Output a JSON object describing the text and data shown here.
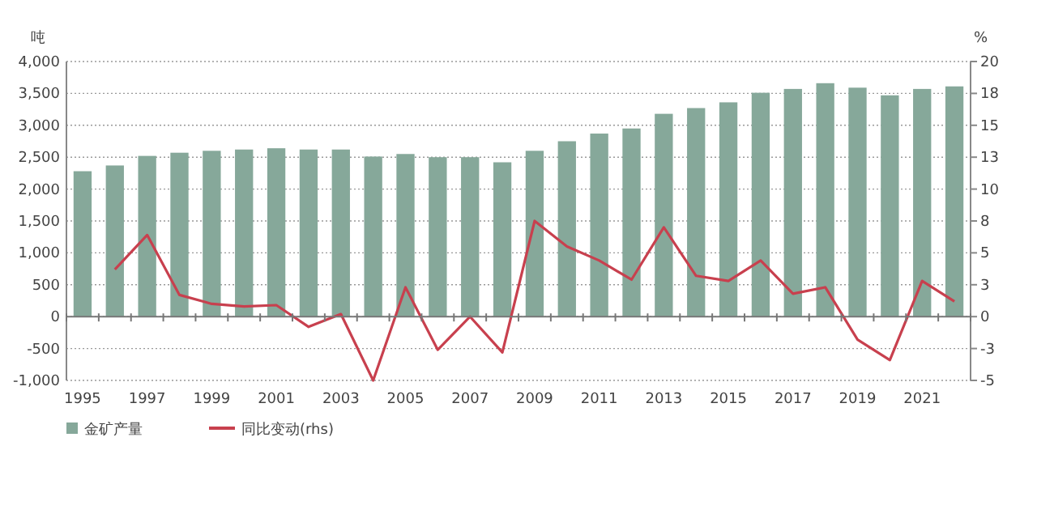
{
  "chart_data": {
    "type": "bar",
    "ylabel": "吨",
    "y2label": "%",
    "legend": "bottom left",
    "grid": "y",
    "categories": [
      "1995",
      null,
      "1997",
      null,
      "1999",
      null,
      "2001",
      null,
      "2003",
      null,
      "2005",
      null,
      "2007",
      null,
      "2009",
      null,
      "2011",
      null,
      "2013",
      null,
      "2015",
      null,
      "2017",
      null,
      "2019",
      null,
      "2021",
      null
    ],
    "ylim": [
      -1000,
      4000
    ],
    "yticks": [
      {
        "value": -1000,
        "label": "-1,000"
      },
      -500,
      0,
      500,
      {
        "value": 1000,
        "label": "1,000"
      },
      {
        "value": 1500,
        "label": "1,500"
      },
      {
        "value": 2000,
        "label": "2,000"
      },
      {
        "value": 2500,
        "label": "2,500"
      },
      {
        "value": 3000,
        "label": "3,000"
      },
      {
        "value": 3500,
        "label": "3,500"
      },
      {
        "value": 4000,
        "label": "4,000"
      }
    ],
    "y2lim": [
      -5,
      20
    ],
    "y2ticks": [
      -5,
      {
        "value": -2.5,
        "label": "-3"
      },
      0,
      {
        "value": 2.5,
        "label": "3"
      },
      5,
      {
        "value": 7.5,
        "label": "8"
      },
      10,
      {
        "value": 12.5,
        "label": "13"
      },
      15,
      {
        "value": 17.5,
        "label": "18"
      },
      20
    ],
    "series": [
      {
        "name": "金矿产量",
        "color": "#86a89a",
        "values": [
          2280,
          2370,
          2520,
          2570,
          2600,
          2620,
          2640,
          2620,
          2620,
          2510,
          2550,
          2500,
          2500,
          2420,
          2600,
          2750,
          2870,
          2950,
          3180,
          3270,
          3360,
          3510,
          3570,
          3660,
          3590,
          3470,
          3570,
          3610
        ]
      },
      {
        "name": "同比变动(rhs)",
        "type": "line",
        "axis": "y2",
        "color": "#c8404e",
        "values": [
          null,
          3.7,
          6.4,
          1.7,
          1,
          0.8,
          0.9,
          -0.8,
          0.2,
          -5,
          2.3,
          -2.6,
          0,
          -2.8,
          7.5,
          5.5,
          4.4,
          2.9,
          7,
          3.2,
          2.8,
          4.4,
          1.8,
          2.3,
          -1.8,
          -3.4,
          2.8,
          1.2
        ]
      }
    ]
  }
}
